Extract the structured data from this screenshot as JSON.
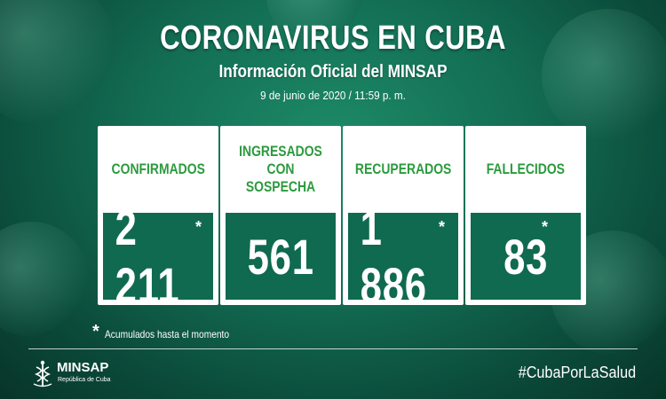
{
  "header": {
    "title": "CORONAVIRUS EN CUBA",
    "subtitle": "Información Oficial del MINSAP",
    "date": "9 de junio de 2020 / 11:59 p. m."
  },
  "stats": [
    {
      "label": "CONFIRMADOS",
      "value": "2 211",
      "marked": true
    },
    {
      "label": "INGRESADOS\nCON SOSPECHA",
      "value": "561",
      "marked": false
    },
    {
      "label": "RECUPERADOS",
      "value": "1 886",
      "marked": true
    },
    {
      "label": "FALLECIDOS",
      "value": "83",
      "marked": true
    }
  ],
  "footnote": {
    "marker": "*",
    "text": "Acumulados hasta el momento"
  },
  "footer": {
    "logo_name": "MINSAP",
    "logo_sub": "República de Cuba",
    "hashtag": "#CubaPorLaSalud"
  },
  "colors": {
    "background": "#136e54",
    "label_green": "#2c9a3e",
    "value_box": "#0f6a50"
  },
  "icons": {
    "logo": "medical-caduceus-icon"
  }
}
